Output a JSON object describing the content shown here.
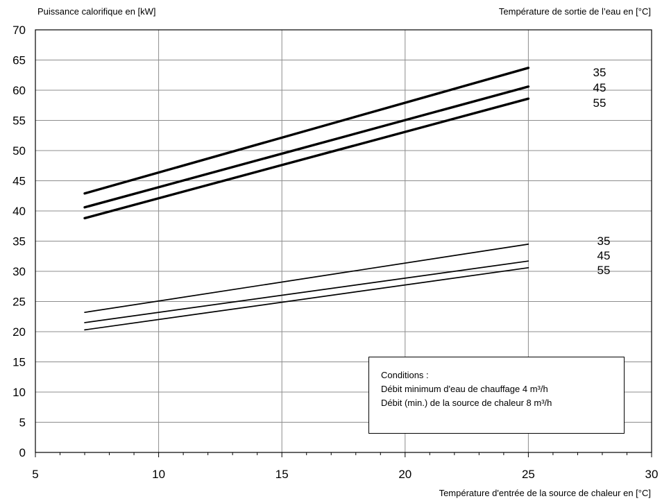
{
  "chart_data": {
    "type": "line",
    "ylabel": "Puissance calorifique en [kW]",
    "secondary_label": "Température de sortie de l’eau en [°C]",
    "xlabel": "Température d'entrée de la source de chaleur en [°C]",
    "xlim": [
      5,
      30
    ],
    "ylim": [
      0,
      70
    ],
    "x_ticks": [
      5,
      10,
      15,
      20,
      25,
      30
    ],
    "y_ticks": [
      0,
      5,
      10,
      15,
      20,
      25,
      30,
      35,
      40,
      45,
      50,
      55,
      60,
      65,
      70
    ],
    "grid": true,
    "x_minor_ticks": true,
    "series": [
      {
        "name": "35",
        "group": "upper",
        "weight": "bold",
        "x": [
          7,
          25
        ],
        "y": [
          42.9,
          63.7
        ]
      },
      {
        "name": "45",
        "group": "upper",
        "weight": "bold",
        "x": [
          7,
          25
        ],
        "y": [
          40.6,
          60.6
        ]
      },
      {
        "name": "55",
        "group": "upper",
        "weight": "bold",
        "x": [
          7,
          25
        ],
        "y": [
          38.8,
          58.6
        ]
      },
      {
        "name": "35",
        "group": "lower",
        "weight": "thin",
        "x": [
          7,
          25
        ],
        "y": [
          23.2,
          34.5
        ]
      },
      {
        "name": "45",
        "group": "lower",
        "weight": "thin",
        "x": [
          7,
          25
        ],
        "y": [
          21.5,
          31.7
        ]
      },
      {
        "name": "55",
        "group": "lower",
        "weight": "thin",
        "x": [
          7,
          25
        ],
        "y": [
          20.3,
          30.6
        ]
      }
    ],
    "annotation": {
      "lines": [
        "Conditions :",
        "Débit minimum d'eau de chauffage 4 m³/h",
        "Débit (min.) de la source de chaleur 8 m³/h"
      ]
    }
  }
}
